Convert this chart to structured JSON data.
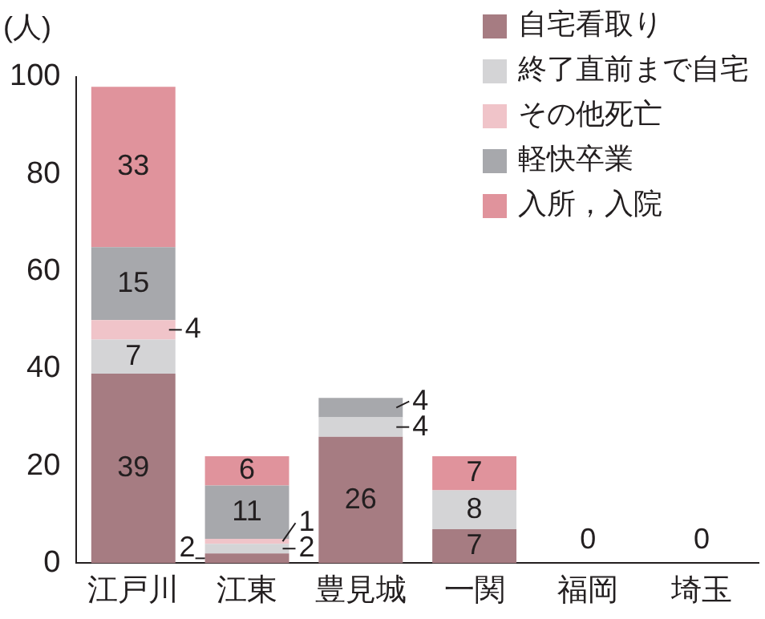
{
  "chart_data": {
    "type": "bar",
    "stacked": true,
    "ylabel": "(人)",
    "categories": [
      "江戸川",
      "江東",
      "豊見城",
      "一関",
      "福岡",
      "埼玉"
    ],
    "series": [
      {
        "name": "自宅看取り",
        "color": "#a67c82",
        "values": [
          39,
          2,
          26,
          7,
          0,
          0
        ],
        "value_labels": [
          "39",
          "2",
          "26",
          "7",
          null,
          null
        ]
      },
      {
        "name": "終了直前まで自宅",
        "color": "#d4d4d6",
        "values": [
          7,
          2,
          4,
          8,
          0,
          0
        ],
        "value_labels": [
          "7",
          "2",
          "4",
          "8",
          null,
          null
        ]
      },
      {
        "name": "その他死亡",
        "color": "#f0c4c9",
        "values": [
          4,
          1,
          0,
          0,
          0,
          0
        ],
        "value_labels": [
          "4",
          "1",
          null,
          null,
          null,
          null
        ]
      },
      {
        "name": "軽快卒業",
        "color": "#a7a8ac",
        "values": [
          15,
          11,
          4,
          0,
          0,
          0
        ],
        "value_labels": [
          "15",
          "11",
          "4",
          null,
          null,
          null
        ]
      },
      {
        "name": "入所，入院",
        "color": "#e0939c",
        "values": [
          33,
          6,
          0,
          7,
          0,
          0
        ],
        "value_labels": [
          "33",
          "6",
          null,
          "7",
          null,
          null
        ]
      }
    ],
    "totals": [
      null,
      null,
      null,
      null,
      "0",
      "0"
    ],
    "ylim": [
      0,
      100
    ],
    "yticks": [
      0,
      20,
      40,
      60,
      80,
      100
    ],
    "grid": false,
    "legend": "top right"
  }
}
